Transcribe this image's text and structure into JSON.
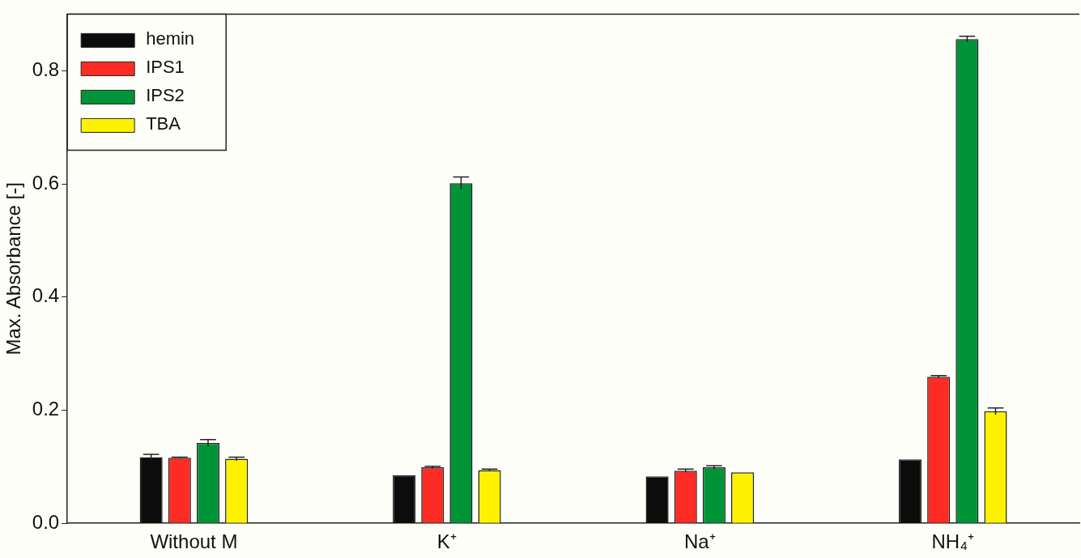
{
  "chart_data": {
    "type": "bar",
    "ylabel": "Max. Absorbance [-]",
    "categories": [
      "Without M",
      "K⁺",
      "Na⁺",
      "NH₄⁺"
    ],
    "series": [
      {
        "name": "hemin",
        "color": "#0c0c0c",
        "values": [
          0.117,
          0.085,
          0.083,
          0.113
        ],
        "errors": [
          0.005,
          null,
          null,
          null
        ]
      },
      {
        "name": "IPS1",
        "color": "#fe2c24",
        "values": [
          0.116,
          0.099,
          0.093,
          0.259
        ],
        "errors": [
          0.001,
          0.002,
          0.003,
          0.002
        ]
      },
      {
        "name": "IPS2",
        "color": "#009438",
        "values": [
          0.142,
          0.601,
          0.099,
          0.856
        ],
        "errors": [
          0.006,
          0.011,
          0.003,
          0.005
        ]
      },
      {
        "name": "TBA",
        "color": "#fff200",
        "values": [
          0.114,
          0.094,
          0.09,
          0.198
        ],
        "errors": [
          0.003,
          0.002,
          null,
          0.006
        ]
      }
    ],
    "ylim": [
      0,
      0.9
    ],
    "yticks": [
      {
        "value": 0,
        "label": "0.0"
      },
      {
        "value": 0.2,
        "label": "0.2"
      },
      {
        "value": 0.4,
        "label": "0.4"
      },
      {
        "value": 0.6,
        "label": "0.6"
      },
      {
        "value": 0.8,
        "label": "0.8"
      }
    ],
    "grid": false,
    "legend": "top left"
  }
}
